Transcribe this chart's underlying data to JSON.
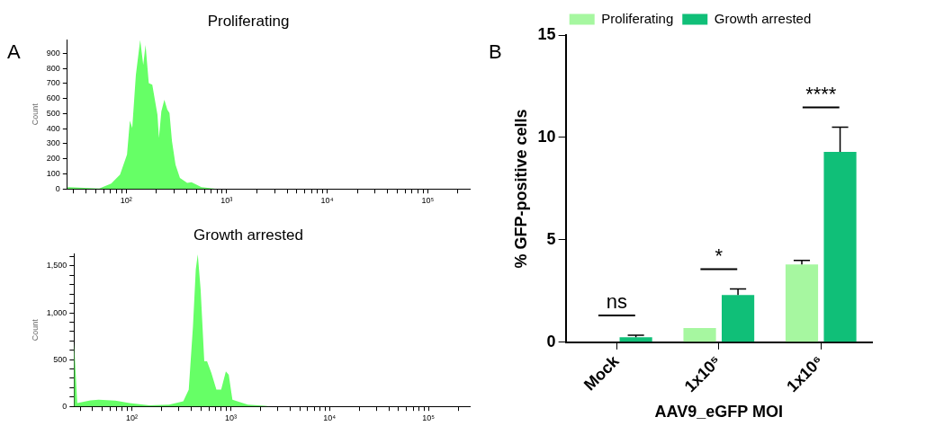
{
  "chart_data": [
    {
      "type": "area",
      "title": "Proliferating",
      "ylabel": "Count",
      "annotations": [
        "A"
      ],
      "color": "#66ff66",
      "log": "x",
      "xlim": [
        26,
        262144
      ],
      "xticks": [
        {
          "value": 30,
          "label": null
        },
        {
          "value": 40,
          "label": null
        },
        {
          "value": 50,
          "label": null
        },
        {
          "value": 60,
          "label": null
        },
        {
          "value": 70,
          "label": null
        },
        {
          "value": 80,
          "label": null
        },
        {
          "value": 90,
          "label": null
        },
        {
          "value": 100,
          "label": "10²"
        },
        {
          "value": 200,
          "label": null
        },
        {
          "value": 300,
          "label": null
        },
        {
          "value": 400,
          "label": null
        },
        {
          "value": 500,
          "label": null
        },
        {
          "value": 600,
          "label": null
        },
        {
          "value": 700,
          "label": null
        },
        {
          "value": 800,
          "label": null
        },
        {
          "value": 900,
          "label": null
        },
        {
          "value": 1000,
          "label": "10³"
        },
        {
          "value": 2000,
          "label": null
        },
        {
          "value": 3000,
          "label": null
        },
        {
          "value": 4000,
          "label": null
        },
        {
          "value": 5000,
          "label": null
        },
        {
          "value": 6000,
          "label": null
        },
        {
          "value": 7000,
          "label": null
        },
        {
          "value": 8000,
          "label": null
        },
        {
          "value": 9000,
          "label": null
        },
        {
          "value": 10000,
          "label": "10⁴"
        },
        {
          "value": 20000,
          "label": null
        },
        {
          "value": 30000,
          "label": null
        },
        {
          "value": 40000,
          "label": null
        },
        {
          "value": 50000,
          "label": null
        },
        {
          "value": 60000,
          "label": null
        },
        {
          "value": 70000,
          "label": null
        },
        {
          "value": 80000,
          "label": null
        },
        {
          "value": 90000,
          "label": null
        },
        {
          "value": 100000,
          "label": "10⁵"
        },
        {
          "value": 200000,
          "label": null
        }
      ],
      "ylim": [
        0,
        990
      ],
      "yticks": [
        0,
        100,
        200,
        300,
        400,
        500,
        600,
        700,
        800,
        900
      ],
      "x": [
        26,
        27,
        54,
        71,
        87,
        102,
        109,
        115,
        125,
        138,
        148,
        156,
        168,
        182,
        205,
        212,
        224,
        240,
        257,
        270,
        286,
        310,
        343,
        405,
        447,
        562,
        741,
        794
      ],
      "values": [
        10,
        11,
        2,
        35,
        95,
        228,
        453,
        404,
        758,
        990,
        824,
        957,
        703,
        692,
        493,
        338,
        515,
        592,
        526,
        504,
        316,
        161,
        73,
        40,
        44,
        11,
        2,
        0
      ]
    },
    {
      "type": "area",
      "title": "Growth arrested",
      "ylabel": "Count",
      "color": "#66ff66",
      "log": "x",
      "xlim": [
        26,
        262144
      ],
      "xticks": [
        {
          "value": 30,
          "label": null
        },
        {
          "value": 40,
          "label": null
        },
        {
          "value": 50,
          "label": null
        },
        {
          "value": 60,
          "label": null
        },
        {
          "value": 70,
          "label": null
        },
        {
          "value": 80,
          "label": null
        },
        {
          "value": 90,
          "label": null
        },
        {
          "value": 100,
          "label": "10²"
        },
        {
          "value": 200,
          "label": null
        },
        {
          "value": 300,
          "label": null
        },
        {
          "value": 400,
          "label": null
        },
        {
          "value": 500,
          "label": null
        },
        {
          "value": 600,
          "label": null
        },
        {
          "value": 700,
          "label": null
        },
        {
          "value": 800,
          "label": null
        },
        {
          "value": 900,
          "label": null
        },
        {
          "value": 1000,
          "label": "10³"
        },
        {
          "value": 2000,
          "label": null
        },
        {
          "value": 3000,
          "label": null
        },
        {
          "value": 4000,
          "label": null
        },
        {
          "value": 5000,
          "label": null
        },
        {
          "value": 6000,
          "label": null
        },
        {
          "value": 7000,
          "label": null
        },
        {
          "value": 8000,
          "label": null
        },
        {
          "value": 9000,
          "label": null
        },
        {
          "value": 10000,
          "label": "10⁴"
        },
        {
          "value": 20000,
          "label": null
        },
        {
          "value": 30000,
          "label": null
        },
        {
          "value": 40000,
          "label": null
        },
        {
          "value": 50000,
          "label": null
        },
        {
          "value": 60000,
          "label": null
        },
        {
          "value": 70000,
          "label": null
        },
        {
          "value": 80000,
          "label": null
        },
        {
          "value": 90000,
          "label": null
        },
        {
          "value": 100000,
          "label": "10⁵"
        },
        {
          "value": 200000,
          "label": null
        }
      ],
      "ylim": [
        0,
        1630
      ],
      "yticks": [
        0,
        {
          "value": 100,
          "label": null
        },
        {
          "value": 200,
          "label": null
        },
        {
          "value": 300,
          "label": null
        },
        {
          "value": 400,
          "label": null
        },
        500,
        {
          "value": 600,
          "label": null
        },
        {
          "value": 700,
          "label": null
        },
        {
          "value": 800,
          "label": null
        },
        {
          "value": 900,
          "label": null
        },
        {
          "value": 1000,
          "label": "1,000"
        },
        {
          "value": 1100,
          "label": null
        },
        {
          "value": 1200,
          "label": null
        },
        {
          "value": 1300,
          "label": null
        },
        {
          "value": 1400,
          "label": null
        },
        {
          "value": 1500,
          "label": "1,500"
        },
        {
          "value": 1600,
          "label": null
        }
      ],
      "x": [
        26,
        28,
        38,
        46,
        68,
        95,
        150,
        238,
        331,
        376,
        415,
        443,
        464,
        496,
        540,
        576,
        637,
        716,
        800,
        893,
        955,
        1040,
        1490,
        2210,
        2520
      ],
      "values": [
        680,
        36,
        64,
        71,
        61,
        36,
        11,
        18,
        54,
        179,
        857,
        1464,
        1624,
        1250,
        482,
        482,
        357,
        179,
        179,
        375,
        339,
        71,
        18,
        7,
        0
      ]
    },
    {
      "type": "bar",
      "xlabel": "AAV9_eGFP MOI",
      "ylabel": "% GFP-positive cells",
      "legend": "top",
      "categories": [
        "Mock",
        "1x10⁵",
        "1x10⁶"
      ],
      "ylim": [
        0,
        15
      ],
      "yticks": [
        0,
        5,
        10,
        15
      ],
      "annotations": [
        "B",
        "ns",
        "*",
        "****"
      ],
      "series": [
        {
          "name": "Proliferating",
          "color": "#a6f7a0",
          "values": [
            0,
            0.7,
            3.8
          ],
          "errors": [
            null,
            null,
            [
              3.8,
              4.0
            ]
          ]
        },
        {
          "name": "Growth arrested",
          "color": "#10bf78",
          "values": [
            0.25,
            2.31,
            9.3
          ],
          "errors": [
            [
              0.25,
              0.34
            ],
            [
              2.31,
              2.6
            ],
            [
              9.3,
              10.5
            ]
          ]
        }
      ]
    }
  ]
}
